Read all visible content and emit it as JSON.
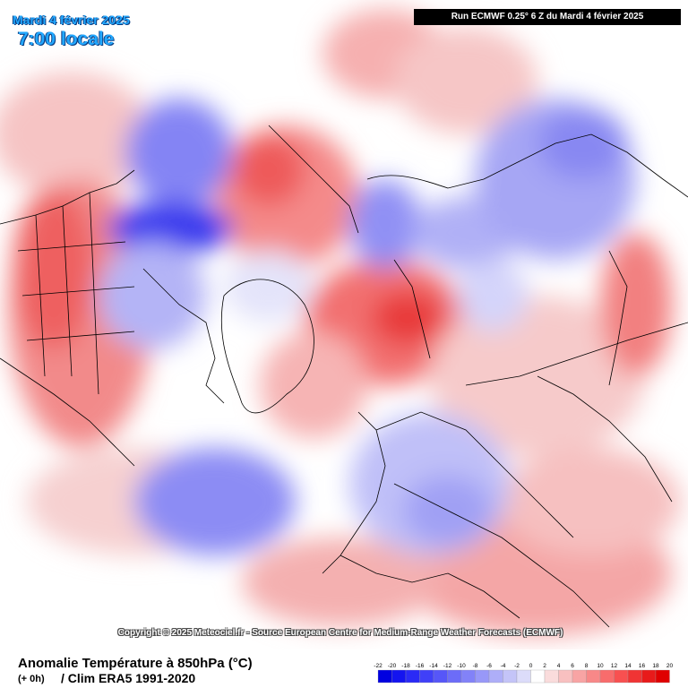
{
  "header": {
    "date": "Mardi 4 février 2025",
    "time": "7:00 locale",
    "run": "Run ECMWF 0.25° 6 Z du Mardi 4 février 2025"
  },
  "copyright": "Copyright © 2025 Meteociel.fr - Source European Centre for Medium-Range Weather Forecasts (ECMWF)",
  "footer": {
    "variable": "Anomalie Température à 850hPa (°C)",
    "lead": "(+ 0h)",
    "climatology": "/ Clim ERA5 1991-2020"
  },
  "legend": {
    "ticks": [
      "-22",
      "-20",
      "-18",
      "-16",
      "-14",
      "-12",
      "-10",
      "-8",
      "-6",
      "-4",
      "-2",
      "0",
      "2",
      "4",
      "6",
      "8",
      "10",
      "12",
      "14",
      "16",
      "18",
      "20"
    ],
    "colors": [
      "#0000e0",
      "#1414f0",
      "#2a2af6",
      "#4040f8",
      "#5656f8",
      "#6c6cf8",
      "#8282f8",
      "#9898f8",
      "#aeaef8",
      "#c4c4f8",
      "#dcdcfa",
      "#ffffff",
      "#fadcdc",
      "#f8c0c0",
      "#f8a4a4",
      "#f88888",
      "#f86c6c",
      "#f85050",
      "#f03434",
      "#e81a1a",
      "#e00000"
    ]
  },
  "colors": {
    "warm_anomaly": "#f06060",
    "cold_anomaly": "#5a5af0",
    "title_blue": "#22a8ff"
  }
}
